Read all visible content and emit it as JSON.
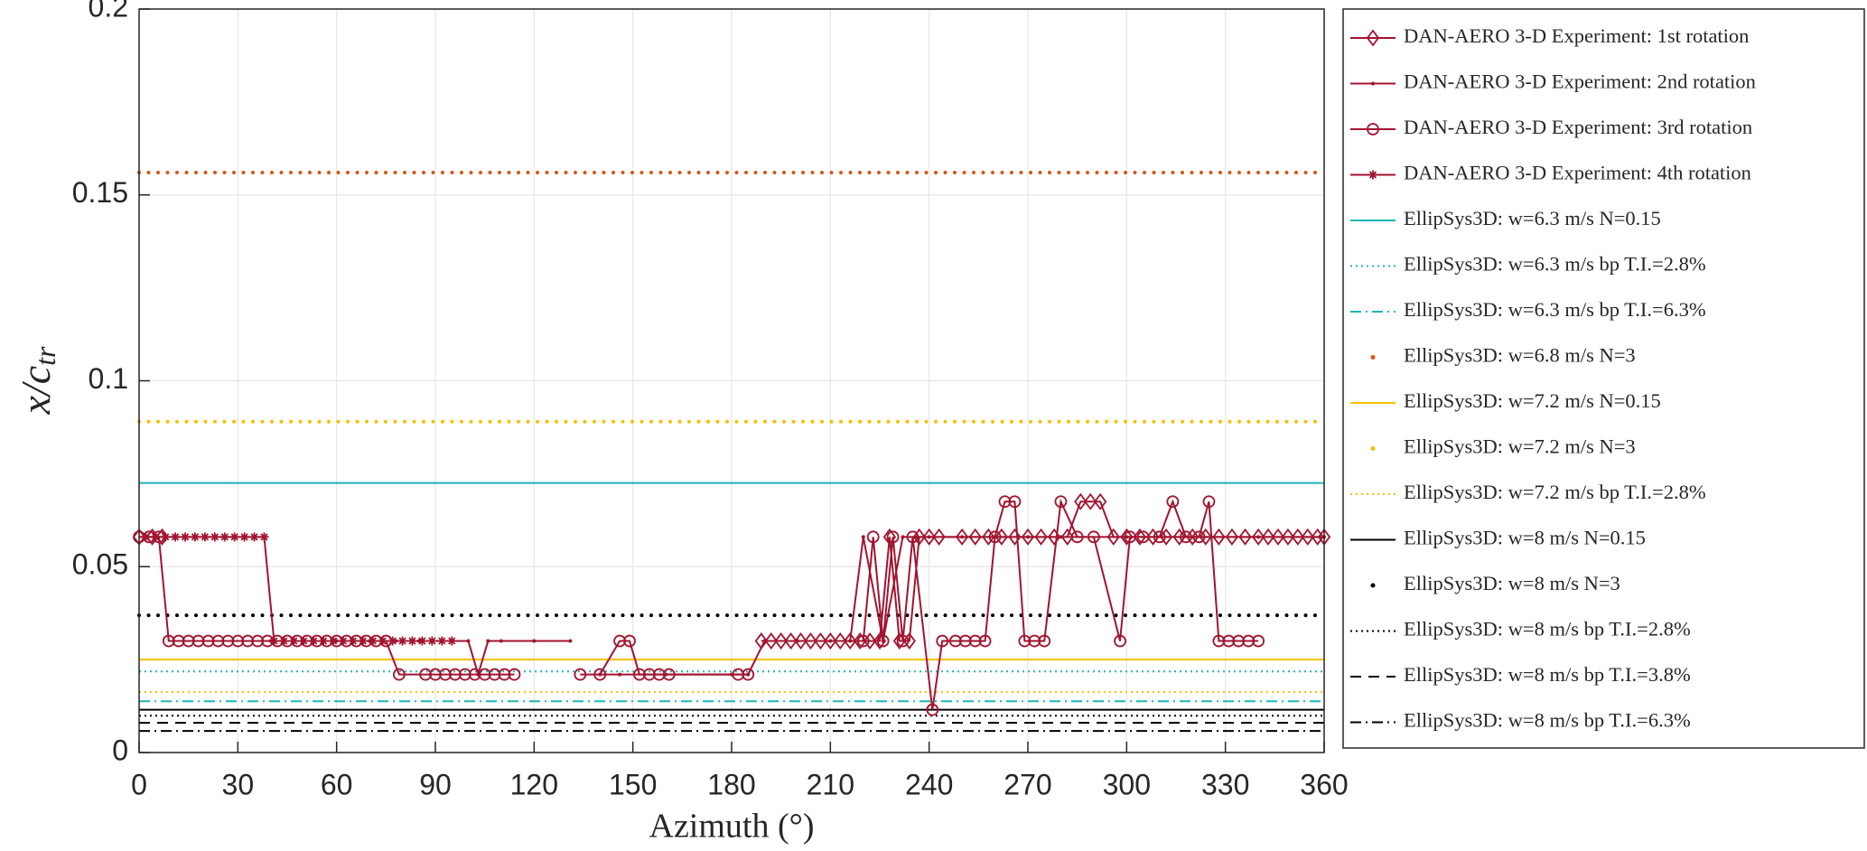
{
  "chart_data": {
    "type": "line",
    "xlabel": "Azimuth (°)",
    "ylabel": "x/c",
    "ylabel_sub": "tr",
    "xlim": [
      0,
      360
    ],
    "ylim": [
      0,
      0.2
    ],
    "xticks": [
      0,
      30,
      60,
      90,
      120,
      150,
      180,
      210,
      240,
      270,
      300,
      330,
      360
    ],
    "yticks": [
      0,
      0.05,
      0.1,
      0.15,
      0.2
    ],
    "grid": true,
    "legend": "outside-right",
    "series": [
      {
        "name": "DAN-AERO 3-D Experiment: 1st rotation",
        "color": "#a2142f",
        "linestyle": "-",
        "marker": "diamond",
        "x": [
          0,
          4,
          7,
          100,
          189,
          192,
          195,
          198,
          201,
          204,
          207,
          210,
          213,
          216,
          219,
          222,
          225,
          228,
          231,
          234,
          237,
          240,
          243,
          250,
          254,
          258,
          262,
          266,
          270,
          274,
          278,
          282,
          286,
          289,
          292,
          296,
          300,
          304,
          308,
          312,
          316,
          320,
          324,
          328,
          332,
          336,
          340,
          343,
          346,
          349,
          352,
          355,
          358,
          360
        ],
        "values": [
          0.058,
          0.058,
          0.058,
          null,
          0.03,
          0.03,
          0.03,
          0.03,
          0.03,
          0.03,
          0.03,
          0.03,
          0.03,
          0.03,
          0.03,
          0.03,
          0.03,
          0.058,
          0.03,
          0.03,
          0.058,
          0.058,
          0.058,
          0.058,
          0.058,
          0.058,
          0.058,
          0.058,
          0.058,
          0.058,
          0.058,
          0.058,
          0.0675,
          0.0675,
          0.0675,
          0.058,
          0.058,
          0.058,
          0.058,
          0.058,
          0.058,
          0.058,
          0.058,
          0.058,
          0.058,
          0.058,
          0.058,
          0.058,
          0.058,
          0.058,
          0.058,
          0.058,
          0.058,
          0.058
        ]
      },
      {
        "name": "DAN-AERO 3-D Experiment: 2nd rotation",
        "color": "#a2142f",
        "linestyle": "-",
        "marker": "dot",
        "x": [
          40,
          50,
          60,
          70,
          78,
          85,
          95,
          100,
          103,
          106,
          110,
          120,
          131,
          135,
          140,
          146,
          160,
          180,
          185,
          190,
          200,
          210,
          216,
          220,
          226,
          232,
          236,
          240,
          250,
          260,
          270,
          280,
          300,
          320,
          340,
          360
        ],
        "values": [
          0.03,
          0.03,
          0.03,
          0.03,
          0.03,
          0.03,
          0.03,
          0.03,
          0.021,
          0.03,
          0.03,
          0.03,
          0.03,
          null,
          0.021,
          0.021,
          0.021,
          0.021,
          0.021,
          0.03,
          0.03,
          0.03,
          0.03,
          0.058,
          0.03,
          0.058,
          0.058,
          0.058,
          0.058,
          0.058,
          0.058,
          0.058,
          0.058,
          0.058,
          0.058,
          0.058
        ]
      },
      {
        "name": "DAN-AERO 3-D Experiment: 3rd rotation",
        "color": "#a2142f",
        "linestyle": "-",
        "marker": "circle",
        "x": [
          0,
          3,
          6,
          9,
          12,
          15,
          18,
          21,
          24,
          27,
          30,
          33,
          36,
          39,
          42,
          45,
          48,
          51,
          54,
          57,
          60,
          63,
          66,
          69,
          72,
          75,
          79,
          87,
          90,
          93,
          96,
          99,
          102,
          105,
          108,
          111,
          114,
          125,
          134,
          140,
          146,
          149,
          152,
          155,
          158,
          161,
          182,
          185,
          200,
          220,
          223,
          226,
          229,
          232,
          235,
          241,
          244,
          248,
          251,
          254,
          257,
          260,
          263,
          266,
          269,
          272,
          275,
          280,
          285,
          290,
          298,
          301,
          305,
          310,
          314,
          318,
          322,
          325,
          328,
          331,
          334,
          337,
          340
        ],
        "values": [
          0.058,
          0.058,
          0.058,
          0.03,
          0.03,
          0.03,
          0.03,
          0.03,
          0.03,
          0.03,
          0.03,
          0.03,
          0.03,
          0.03,
          0.03,
          0.03,
          0.03,
          0.03,
          0.03,
          0.03,
          0.03,
          0.03,
          0.03,
          0.03,
          0.03,
          0.03,
          0.021,
          0.021,
          0.021,
          0.021,
          0.021,
          0.021,
          0.021,
          0.021,
          0.021,
          0.021,
          0.021,
          null,
          0.021,
          0.021,
          0.03,
          0.03,
          0.021,
          0.021,
          0.021,
          0.021,
          0.021,
          0.021,
          null,
          0.03,
          0.058,
          0.03,
          0.058,
          0.03,
          0.058,
          0.0115,
          0.03,
          0.03,
          0.03,
          0.03,
          0.03,
          0.058,
          0.0675,
          0.0675,
          0.03,
          0.03,
          0.03,
          0.0675,
          0.058,
          0.058,
          0.03,
          0.058,
          0.058,
          0.058,
          0.0675,
          0.058,
          0.058,
          0.0675,
          0.03,
          0.03,
          0.03,
          0.03,
          0.03
        ]
      },
      {
        "name": "DAN-AERO 3-D Experiment: 4th rotation",
        "color": "#a2142f",
        "linestyle": "-",
        "marker": "star",
        "x": [
          2,
          5,
          8,
          11,
          14,
          17,
          20,
          23,
          26,
          29,
          32,
          35,
          38,
          41,
          44,
          47,
          50,
          53,
          56,
          59,
          62,
          65,
          68,
          71,
          74,
          77,
          80,
          83,
          86,
          89,
          92,
          95
        ],
        "values": [
          0.058,
          0.058,
          0.058,
          0.058,
          0.058,
          0.058,
          0.058,
          0.058,
          0.058,
          0.058,
          0.058,
          0.058,
          0.058,
          0.03,
          0.03,
          0.03,
          0.03,
          0.03,
          0.03,
          0.03,
          0.03,
          0.03,
          0.03,
          0.03,
          0.03,
          0.03,
          0.03,
          0.03,
          0.03,
          0.03,
          0.03,
          0.03
        ]
      },
      {
        "name": "EllipSys3D: w=6.3 m/s N=0.15",
        "color": "#1fb5b5",
        "linestyle": "-",
        "marker": "none",
        "x": [
          0,
          360
        ],
        "values": [
          0.0725,
          0.0725
        ]
      },
      {
        "name": "EllipSys3D: w=6.3 m/s bp T.I.=2.8%",
        "color": "#1fb5b5",
        "linestyle": ":",
        "marker": "none",
        "x": [
          0,
          360
        ],
        "values": [
          0.0218,
          0.0218
        ]
      },
      {
        "name": "EllipSys3D: w=6.3 m/s bp T.I.=6.3%",
        "color": "#1fb5b5",
        "linestyle": "-.",
        "marker": "none",
        "x": [
          0,
          360
        ],
        "values": [
          0.0138,
          0.0138
        ]
      },
      {
        "name": "EllipSys3D: w=6.8 m/s N=3",
        "color": "#d95319",
        "linestyle": "dots",
        "marker": "none",
        "x": [
          0,
          360
        ],
        "values": [
          0.156,
          0.156
        ]
      },
      {
        "name": "EllipSys3D: w=7.2 m/s N=0.15",
        "color": "#f5c000",
        "linestyle": "-",
        "marker": "none",
        "x": [
          0,
          360
        ],
        "values": [
          0.025,
          0.025
        ]
      },
      {
        "name": "EllipSys3D: w=7.2 m/s N=3",
        "color": "#f5c000",
        "linestyle": "dots",
        "marker": "none",
        "x": [
          0,
          360
        ],
        "values": [
          0.089,
          0.089
        ]
      },
      {
        "name": "EllipSys3D: w=7.2 m/s bp T.I.=2.8%",
        "color": "#f5c000",
        "linestyle": ":",
        "marker": "none",
        "x": [
          0,
          360
        ],
        "values": [
          0.0163,
          0.0163
        ]
      },
      {
        "name": "EllipSys3D: w=8 m/s N=0.15",
        "color": "#000000",
        "linestyle": "-",
        "marker": "none",
        "x": [
          0,
          360
        ],
        "values": [
          0.0115,
          0.0115
        ]
      },
      {
        "name": "EllipSys3D: w=8 m/s N=3",
        "color": "#000000",
        "linestyle": "dots",
        "marker": "none",
        "x": [
          0,
          360
        ],
        "values": [
          0.0369,
          0.0369
        ]
      },
      {
        "name": "EllipSys3D: w=8 m/s bp T.I.=2.8%",
        "color": "#000000",
        "linestyle": ":",
        "marker": "none",
        "x": [
          0,
          360
        ],
        "values": [
          0.0099,
          0.0099
        ]
      },
      {
        "name": "EllipSys3D: w=8 m/s bp T.I.=3.8%",
        "color": "#000000",
        "linestyle": "--",
        "marker": "none",
        "x": [
          0,
          360
        ],
        "values": [
          0.008,
          0.008
        ]
      },
      {
        "name": "EllipSys3D: w=8 m/s bp T.I.=6.3%",
        "color": "#000000",
        "linestyle": "-.",
        "marker": "none",
        "x": [
          0,
          360
        ],
        "values": [
          0.0058,
          0.0058
        ]
      }
    ]
  }
}
